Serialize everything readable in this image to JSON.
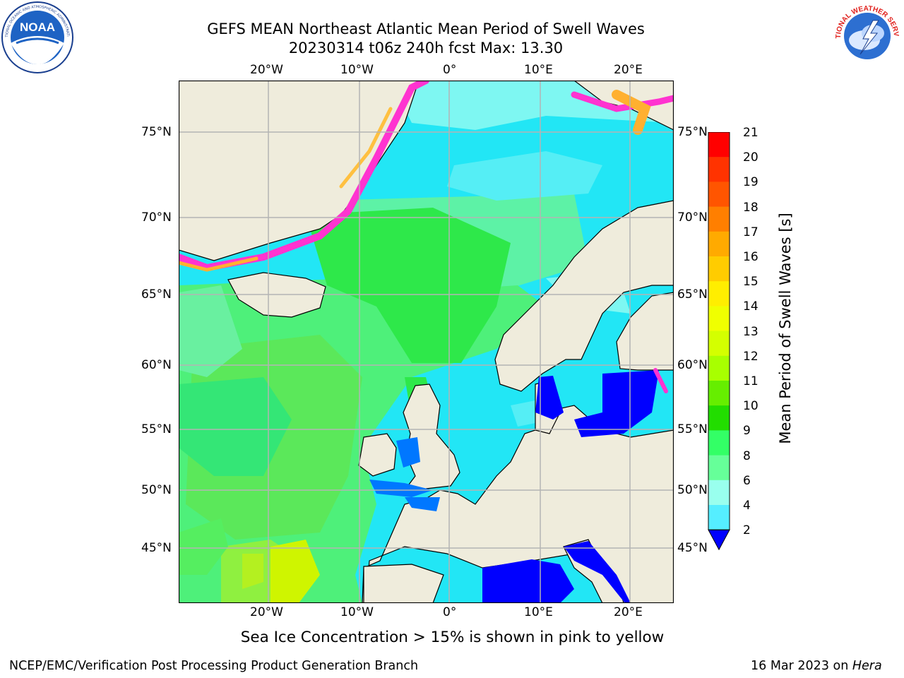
{
  "title": {
    "line1": "GEFS MEAN Northeast Atlantic Mean Period of Swell Waves",
    "line2": "20230314 t06z 240h fcst   Max: 13.30"
  },
  "logos": {
    "left": "NOAA",
    "right": "NATIONAL WEATHER SERVICE"
  },
  "map": {
    "lon_labels": [
      "20°W",
      "10°W",
      "0°",
      "10°E",
      "20°E"
    ],
    "lat_labels": [
      "75°N",
      "70°N",
      "65°N",
      "60°N",
      "55°N",
      "50°N",
      "45°N"
    ],
    "colors": {
      "land": "#efecdc",
      "grid": "#b4b4b4",
      "coast": "#000000"
    }
  },
  "colorbar": {
    "label": "Mean Period of Swell Waves [s]",
    "ticks": [
      "21",
      "20",
      "19",
      "18",
      "17",
      "16",
      "15",
      "14",
      "13",
      "12",
      "11",
      "10",
      "9",
      "8",
      "6",
      "4",
      "2"
    ],
    "colors": [
      "#ff0000",
      "#ff3300",
      "#ff5500",
      "#ff7f00",
      "#ffaa00",
      "#ffcc00",
      "#ffee00",
      "#f0ff00",
      "#d4ff00",
      "#a8ff00",
      "#66ee00",
      "#22dd00",
      "#33ff66",
      "#66ff99",
      "#99ffee",
      "#55eeff",
      "#00e0ff",
      "#0077ff"
    ],
    "extend_color": "#0000ff"
  },
  "note": "Sea Ice Concentration > 15% is shown in pink to yellow",
  "footer": {
    "left": "NCEP/EMC/Verification Post Processing Product Generation Branch",
    "right_prefix": "16 Mar 2023 on ",
    "right_italic": "Hera"
  }
}
